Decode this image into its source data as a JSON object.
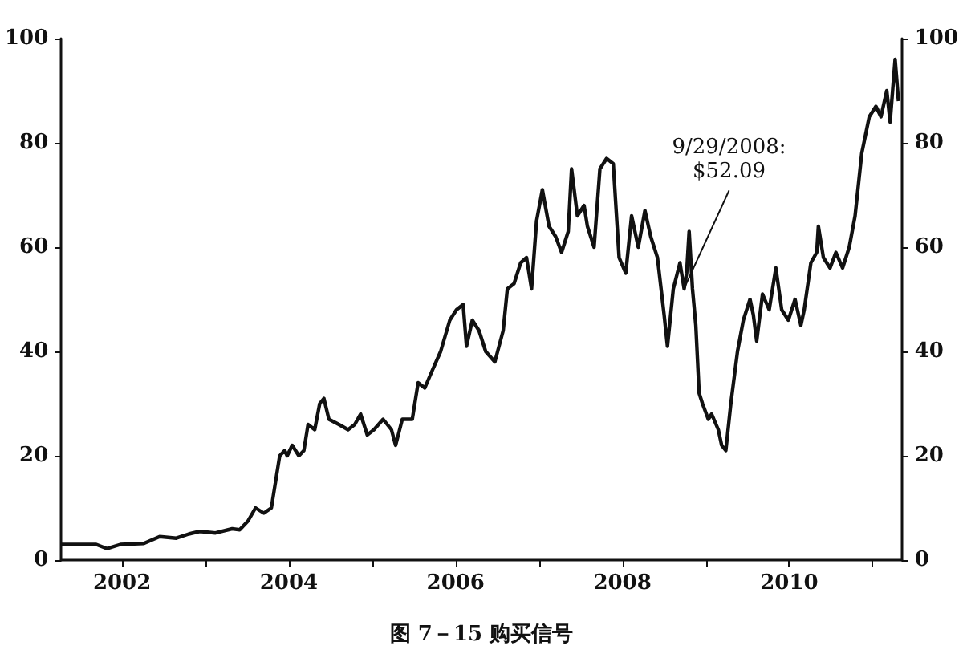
{
  "chart_data": {
    "type": "line",
    "title": "图 7－15 购买信号",
    "x": [
      2001.27,
      2001.69,
      2001.82,
      2001.98,
      2002.26,
      2002.45,
      2002.65,
      2002.8,
      2002.93,
      2003.12,
      2003.32,
      2003.41,
      2003.51,
      2003.6,
      2003.7,
      2003.79,
      2003.83,
      2003.89,
      2003.95,
      2003.98,
      2004.04,
      2004.12,
      2004.18,
      2004.23,
      2004.31,
      2004.37,
      2004.42,
      2004.48,
      2004.6,
      2004.71,
      2004.79,
      2004.86,
      2004.94,
      2005.02,
      2005.13,
      2005.23,
      2005.28,
      2005.36,
      2005.48,
      2005.55,
      2005.63,
      2005.71,
      2005.82,
      2005.93,
      2006.01,
      2006.09,
      2006.13,
      2006.2,
      2006.28,
      2006.36,
      2006.47,
      2006.57,
      2006.62,
      2006.7,
      2006.78,
      2006.85,
      2006.91,
      2006.97,
      2007.04,
      2007.12,
      2007.2,
      2007.27,
      2007.35,
      2007.39,
      2007.46,
      2007.54,
      2007.58,
      2007.66,
      2007.73,
      2007.81,
      2007.89,
      2007.96,
      2008.04,
      2008.11,
      2008.19,
      2008.27,
      2008.34,
      2008.42,
      2008.5,
      2008.54,
      2008.61,
      2008.69,
      2008.74,
      2008.77,
      2008.8,
      2008.84,
      2008.88,
      2008.92,
      2008.96,
      2009.03,
      2009.07,
      2009.15,
      2009.19,
      2009.24,
      2009.3,
      2009.38,
      2009.45,
      2009.53,
      2009.57,
      2009.61,
      2009.68,
      2009.76,
      2009.84,
      2009.91,
      2009.99,
      2010.07,
      2010.14,
      2010.18,
      2010.26,
      2010.33,
      2010.35,
      2010.41,
      2010.49,
      2010.56,
      2010.64,
      2010.72,
      2010.79,
      2010.87,
      2010.96,
      2011.04,
      2011.1,
      2011.17,
      2011.21,
      2011.27,
      2011.31
    ],
    "series": [
      {
        "color": "#111111",
        "values": [
          3,
          3,
          2.2,
          3,
          3.2,
          4.5,
          4.2,
          5,
          5.5,
          5.2,
          6,
          5.8,
          7.5,
          10,
          9,
          10,
          14,
          20,
          21,
          20,
          22,
          20,
          21,
          26,
          25,
          30,
          31,
          27,
          26,
          25,
          26,
          28,
          24,
          25,
          27,
          25,
          22,
          27,
          27,
          34,
          33,
          36,
          40,
          46,
          48,
          49,
          41,
          46,
          44,
          40,
          38,
          44,
          52,
          53,
          57,
          58,
          52,
          65,
          71,
          64,
          62,
          59,
          63,
          75,
          66,
          68,
          64,
          60,
          75,
          77,
          76,
          58,
          55,
          66,
          60,
          67,
          62,
          58,
          47,
          41,
          52,
          57,
          52,
          55,
          63,
          52,
          45,
          32,
          30,
          27,
          28,
          25,
          22,
          21,
          30,
          40,
          46,
          50,
          47,
          42,
          51,
          48,
          56,
          48,
          46,
          50,
          45,
          48,
          57,
          59,
          64,
          58,
          56,
          59,
          56,
          60,
          66,
          78,
          85,
          87,
          85,
          90,
          84,
          96,
          88
        ]
      }
    ],
    "xlim": [
      2001.27,
      2011.35
    ],
    "xticks": [
      2002,
      {
        "value": 2003,
        "label": null
      },
      2004,
      {
        "value": 2005,
        "label": null
      },
      2006,
      {
        "value": 2007,
        "label": null
      },
      2008,
      {
        "value": 2009,
        "label": null
      },
      2010,
      {
        "value": 2011,
        "label": null
      }
    ],
    "ylim": [
      0,
      100
    ],
    "yticks": [
      0,
      20,
      40,
      60,
      80,
      100
    ],
    "y2lim": [
      0,
      100
    ],
    "y2ticks": [
      0,
      20,
      40,
      60,
      80,
      100
    ],
    "annotations": [
      {
        "text": "9/29/2008:\n$52.09",
        "x": 2008.74,
        "y": 52.09
      }
    ],
    "grid": false,
    "marker": "none",
    "line_style": "solid"
  }
}
